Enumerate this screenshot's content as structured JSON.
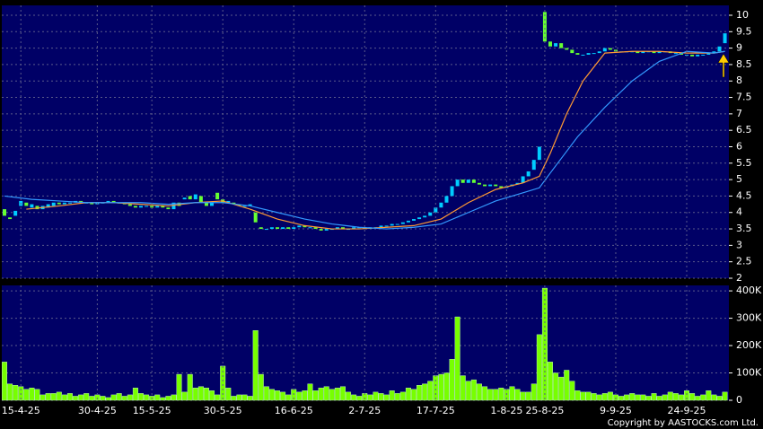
{
  "chart_data": [
    {
      "type": "candlestick",
      "up_color": "#00ccff",
      "down_color": "#66ff33",
      "open": [
        4.1,
        3.85,
        3.9,
        4.2,
        4.3,
        4.15,
        4.2,
        4.1,
        4.15,
        4.2,
        4.3,
        4.25,
        4.3,
        4.3,
        4.35,
        4.3,
        4.3,
        4.25,
        4.3,
        4.3,
        4.35,
        4.3,
        4.3,
        4.25,
        4.2,
        4.15,
        4.2,
        4.2,
        4.15,
        4.2,
        4.15,
        4.1,
        4.3,
        4.4,
        4.5,
        4.4,
        4.5,
        4.3,
        4.2,
        4.6,
        4.4,
        4.3,
        4.3,
        4.25,
        4.2,
        4.2,
        4.0,
        3.55,
        3.5,
        3.5,
        3.55,
        3.5,
        3.55,
        3.5,
        3.55,
        3.6,
        3.55,
        3.55,
        3.5,
        3.45,
        3.5,
        3.5,
        3.55,
        3.5,
        3.5,
        3.55,
        3.55,
        3.5,
        3.55,
        3.55,
        3.6,
        3.6,
        3.65,
        3.65,
        3.7,
        3.75,
        3.8,
        3.85,
        3.9,
        4.0,
        4.15,
        4.3,
        4.5,
        4.8,
        5.0,
        4.9,
        5.0,
        4.9,
        4.85,
        4.8,
        4.85,
        4.8,
        4.75,
        4.8,
        4.85,
        4.9,
        5.1,
        5.3,
        5.6,
        10.1,
        9.2,
        9.05,
        9.15,
        9.0,
        8.95,
        8.85,
        8.8,
        8.8,
        8.85,
        8.85,
        8.9,
        9.0,
        8.95,
        8.9,
        8.9,
        8.9,
        8.9,
        8.85,
        8.9,
        8.9,
        8.85,
        8.9,
        8.9,
        8.85,
        8.85,
        8.8,
        8.8,
        8.75,
        8.8,
        8.8,
        8.85,
        8.9,
        9.15
      ],
      "close": [
        3.9,
        3.8,
        4.05,
        4.35,
        4.2,
        4.25,
        4.1,
        4.2,
        4.25,
        4.3,
        4.25,
        4.3,
        4.3,
        4.35,
        4.3,
        4.3,
        4.25,
        4.3,
        4.3,
        4.35,
        4.3,
        4.3,
        4.25,
        4.2,
        4.15,
        4.2,
        4.2,
        4.15,
        4.2,
        4.15,
        4.1,
        4.3,
        4.2,
        4.45,
        4.4,
        4.55,
        4.3,
        4.2,
        4.3,
        4.4,
        4.3,
        4.35,
        4.25,
        4.2,
        4.2,
        4.25,
        3.7,
        3.5,
        3.5,
        3.55,
        3.5,
        3.55,
        3.5,
        3.55,
        3.6,
        3.55,
        3.55,
        3.5,
        3.45,
        3.5,
        3.5,
        3.55,
        3.5,
        3.5,
        3.55,
        3.55,
        3.5,
        3.55,
        3.55,
        3.6,
        3.6,
        3.65,
        3.65,
        3.7,
        3.75,
        3.8,
        3.85,
        3.9,
        4.0,
        4.15,
        4.3,
        4.5,
        4.8,
        5.0,
        4.9,
        5.0,
        4.9,
        4.85,
        4.8,
        4.85,
        4.8,
        4.75,
        4.8,
        4.85,
        4.9,
        5.1,
        5.25,
        5.6,
        6.0,
        9.2,
        9.05,
        9.15,
        9.0,
        8.95,
        8.85,
        8.8,
        8.8,
        8.85,
        8.85,
        8.9,
        9.0,
        8.95,
        8.9,
        8.9,
        8.9,
        8.9,
        8.85,
        8.9,
        8.9,
        8.85,
        8.9,
        8.9,
        8.85,
        8.85,
        8.8,
        8.8,
        8.75,
        8.8,
        8.8,
        8.85,
        8.9,
        9.05,
        9.45
      ],
      "series": [
        {
          "color": "#ff9933",
          "x": [
            4,
            10,
            15,
            20,
            25,
            30,
            35,
            40,
            45,
            50,
            55,
            60,
            65,
            70,
            75,
            80,
            85,
            90,
            95,
            98,
            100,
            103,
            106,
            110,
            115,
            120,
            125,
            130,
            132
          ],
          "values": [
            4.1,
            4.2,
            4.3,
            4.3,
            4.25,
            4.2,
            4.3,
            4.35,
            4.1,
            3.8,
            3.6,
            3.5,
            3.5,
            3.55,
            3.6,
            3.8,
            4.3,
            4.7,
            4.9,
            5.1,
            5.8,
            7.0,
            8.0,
            8.85,
            8.9,
            8.9,
            8.85,
            8.85,
            8.9
          ]
        },
        {
          "color": "#3399ff",
          "x": [
            0,
            5,
            10,
            15,
            20,
            25,
            30,
            35,
            40,
            45,
            50,
            55,
            60,
            65,
            70,
            75,
            80,
            85,
            90,
            95,
            98,
            100,
            105,
            110,
            115,
            120,
            125,
            130,
            132
          ],
          "values": [
            4.5,
            4.4,
            4.35,
            4.3,
            4.3,
            4.3,
            4.25,
            4.3,
            4.3,
            4.2,
            4.0,
            3.8,
            3.65,
            3.55,
            3.5,
            3.55,
            3.65,
            4.0,
            4.35,
            4.6,
            4.75,
            5.2,
            6.3,
            7.2,
            8.0,
            8.6,
            8.9,
            8.85,
            8.9
          ]
        }
      ],
      "ylim": [
        2,
        10.3
      ],
      "yticks": [
        2,
        2.5,
        3,
        3.5,
        4,
        4.5,
        5,
        5.5,
        6,
        6.5,
        7,
        7.5,
        8,
        8.5,
        9,
        9.5,
        10
      ],
      "grid": true
    },
    {
      "type": "bar",
      "color": "#77ff00",
      "categories": [
        null,
        null,
        null,
        "15-4-25",
        null,
        null,
        null,
        null,
        null,
        null,
        null,
        null,
        null,
        null,
        null,
        null,
        null,
        "30-4-25",
        null,
        null,
        null,
        null,
        null,
        null,
        null,
        null,
        null,
        "15-5-25",
        null,
        null,
        null,
        null,
        null,
        null,
        null,
        null,
        null,
        null,
        null,
        null,
        "30-5-25",
        null,
        null,
        null,
        null,
        null,
        null,
        null,
        null,
        null,
        null,
        null,
        null,
        "16-6-25",
        null,
        null,
        null,
        null,
        null,
        null,
        null,
        null,
        null,
        null,
        null,
        null,
        "2-7-25",
        null,
        null,
        null,
        null,
        null,
        null,
        null,
        null,
        null,
        null,
        null,
        null,
        "17-7-25",
        null,
        null,
        null,
        null,
        null,
        null,
        null,
        null,
        null,
        null,
        null,
        null,
        "1-8-25",
        null,
        null,
        null,
        null,
        null,
        null,
        "25-8-25",
        null,
        null,
        null,
        null,
        null,
        null,
        null,
        null,
        null,
        null,
        null,
        null,
        "9-9-25",
        null,
        null,
        null,
        null,
        null,
        null,
        null,
        null,
        null,
        null,
        null,
        null,
        "24-9-25",
        null,
        null,
        null,
        null,
        null,
        null,
        null
      ],
      "values": [
        140000,
        60000,
        55000,
        50000,
        40000,
        45000,
        40000,
        20000,
        25000,
        25000,
        30000,
        20000,
        25000,
        15000,
        20000,
        25000,
        15000,
        20000,
        15000,
        10000,
        20000,
        25000,
        15000,
        20000,
        45000,
        25000,
        20000,
        15000,
        20000,
        10000,
        15000,
        20000,
        95000,
        30000,
        95000,
        45000,
        50000,
        45000,
        35000,
        20000,
        125000,
        45000,
        15000,
        20000,
        20000,
        15000,
        255000,
        95000,
        50000,
        40000,
        35000,
        30000,
        20000,
        40000,
        30000,
        35000,
        60000,
        35000,
        45000,
        50000,
        40000,
        45000,
        50000,
        30000,
        20000,
        15000,
        25000,
        20000,
        30000,
        25000,
        20000,
        35000,
        25000,
        30000,
        45000,
        40000,
        55000,
        60000,
        70000,
        90000,
        95000,
        100000,
        150000,
        305000,
        90000,
        70000,
        75000,
        60000,
        50000,
        40000,
        40000,
        45000,
        40000,
        50000,
        40000,
        30000,
        30000,
        60000,
        240000,
        410000,
        140000,
        100000,
        85000,
        110000,
        70000,
        35000,
        30000,
        30000,
        25000,
        20000,
        25000,
        30000,
        20000,
        15000,
        20000,
        25000,
        20000,
        20000,
        15000,
        25000,
        15000,
        20000,
        30000,
        25000,
        20000,
        35000,
        25000,
        15000,
        20000,
        35000,
        20000,
        15000,
        30000
      ],
      "ylim": [
        0,
        420000
      ],
      "yticks": [
        0,
        {
          "value": 100000,
          "label": "100K"
        },
        {
          "value": 200000,
          "label": "200K"
        },
        {
          "value": 300000,
          "label": "300K"
        },
        {
          "value": 400000,
          "label": "400K"
        }
      ],
      "grid": true
    }
  ],
  "footer": "Copyright by AASTOCKS.com Ltd."
}
